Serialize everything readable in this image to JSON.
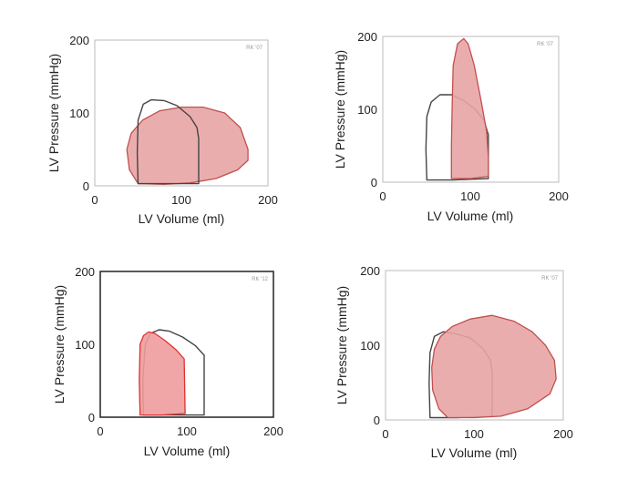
{
  "chart_data": [
    {
      "type": "line",
      "title": "",
      "xlabel": "LV  Volume (ml)",
      "ylabel": "LV  Pressure (mmHg)",
      "xlim": [
        0,
        200
      ],
      "ylim": [
        0,
        200
      ],
      "xticks": [
        "0",
        "100",
        "200"
      ],
      "yticks": [
        "0",
        "100",
        "200"
      ],
      "annotation": "RK '07",
      "frame_color": "#bbbbbb",
      "series": [
        {
          "style": "outline",
          "color": "#444444",
          "points": [
            [
              50,
              3
            ],
            [
              49,
              45
            ],
            [
              50,
              90
            ],
            [
              56,
              112
            ],
            [
              65,
              118
            ],
            [
              80,
              117
            ],
            [
              95,
              110
            ],
            [
              110,
              95
            ],
            [
              118,
              80
            ],
            [
              120,
              65
            ],
            [
              120,
              3
            ]
          ]
        },
        {
          "style": "filled",
          "color": "#c0504d",
          "fill": "#e8a4a4",
          "points": [
            [
              50,
              3
            ],
            [
              40,
              22
            ],
            [
              37,
              50
            ],
            [
              42,
              72
            ],
            [
              55,
              90
            ],
            [
              75,
              103
            ],
            [
              100,
              108
            ],
            [
              125,
              108
            ],
            [
              150,
              100
            ],
            [
              168,
              80
            ],
            [
              177,
              50
            ],
            [
              177,
              35
            ],
            [
              165,
              22
            ],
            [
              140,
              10
            ],
            [
              110,
              4
            ],
            [
              80,
              2
            ]
          ]
        }
      ]
    },
    {
      "type": "line",
      "title": "",
      "xlabel": "LV  Volume (ml)",
      "ylabel": "LV  Pressure (mmHg)",
      "xlim": [
        0,
        200
      ],
      "ylim": [
        0,
        200
      ],
      "xticks": [
        "0",
        "100",
        "200"
      ],
      "yticks": [
        "0",
        "100",
        "200"
      ],
      "annotation": "RK '07",
      "frame_color": "#bbbbbb",
      "series": [
        {
          "style": "outline",
          "color": "#444444",
          "points": [
            [
              50,
              3
            ],
            [
              49,
              45
            ],
            [
              50,
              90
            ],
            [
              55,
              110
            ],
            [
              65,
              120
            ],
            [
              78,
              120
            ],
            [
              92,
              112
            ],
            [
              105,
              100
            ],
            [
              115,
              85
            ],
            [
              120,
              65
            ],
            [
              120,
              5
            ],
            [
              100,
              4
            ],
            [
              80,
              3
            ]
          ]
        },
        {
          "style": "filled",
          "color": "#c0504d",
          "fill": "#e8a4a4",
          "points": [
            [
              78,
              5
            ],
            [
              78,
              50
            ],
            [
              79,
              110
            ],
            [
              80,
              160
            ],
            [
              85,
              190
            ],
            [
              92,
              197
            ],
            [
              97,
              190
            ],
            [
              104,
              160
            ],
            [
              112,
              110
            ],
            [
              118,
              70
            ],
            [
              120,
              35
            ],
            [
              120,
              8
            ],
            [
              100,
              5
            ]
          ]
        }
      ]
    },
    {
      "type": "line",
      "title": "",
      "xlabel": "LV  Volume (ml)",
      "ylabel": "LV  Pressure (mmHg)",
      "xlim": [
        0,
        200
      ],
      "ylim": [
        0,
        200
      ],
      "xticks": [
        "0",
        "100",
        "200"
      ],
      "yticks": [
        "0",
        "100",
        "200"
      ],
      "annotation": "RK '12",
      "frame_color": "#222222",
      "series": [
        {
          "style": "outline",
          "color": "#444444",
          "points": [
            [
              50,
              3
            ],
            [
              49,
              50
            ],
            [
              52,
              100
            ],
            [
              58,
              115
            ],
            [
              68,
              120
            ],
            [
              80,
              118
            ],
            [
              95,
              110
            ],
            [
              110,
              98
            ],
            [
              120,
              85
            ],
            [
              120,
              3
            ]
          ]
        },
        {
          "style": "filled",
          "color": "#e03030",
          "fill": "#ee9c9c",
          "points": [
            [
              46,
              3
            ],
            [
              45,
              50
            ],
            [
              46,
              100
            ],
            [
              50,
              112
            ],
            [
              56,
              117
            ],
            [
              63,
              115
            ],
            [
              75,
              105
            ],
            [
              88,
              92
            ],
            [
              97,
              80
            ],
            [
              98,
              5
            ],
            [
              70,
              3
            ]
          ]
        }
      ]
    },
    {
      "type": "line",
      "title": "",
      "xlabel": "LV  Volume (ml)",
      "ylabel": "LV  Pressure (mmHg)",
      "xlim": [
        0,
        200
      ],
      "ylim": [
        0,
        200
      ],
      "xticks": [
        "0",
        "100",
        "200"
      ],
      "yticks": [
        "0",
        "100",
        "200"
      ],
      "annotation": "RK '07",
      "frame_color": "#bbbbbb",
      "series": [
        {
          "style": "outline",
          "color": "#444444",
          "points": [
            [
              50,
              3
            ],
            [
              49,
              50
            ],
            [
              50,
              90
            ],
            [
              55,
              112
            ],
            [
              65,
              118
            ],
            [
              80,
              115
            ],
            [
              95,
              110
            ],
            [
              110,
              95
            ],
            [
              118,
              80
            ],
            [
              120,
              65
            ],
            [
              120,
              5
            ],
            [
              80,
              3
            ]
          ]
        },
        {
          "style": "filled",
          "color": "#c0504d",
          "fill": "#e8a4a4",
          "points": [
            [
              70,
              3
            ],
            [
              60,
              15
            ],
            [
              53,
              40
            ],
            [
              52,
              70
            ],
            [
              55,
              95
            ],
            [
              62,
              112
            ],
            [
              75,
              125
            ],
            [
              95,
              135
            ],
            [
              120,
              140
            ],
            [
              145,
              132
            ],
            [
              165,
              118
            ],
            [
              180,
              100
            ],
            [
              190,
              80
            ],
            [
              192,
              55
            ],
            [
              185,
              35
            ],
            [
              160,
              15
            ],
            [
              130,
              5
            ],
            [
              100,
              3
            ]
          ]
        }
      ]
    }
  ]
}
